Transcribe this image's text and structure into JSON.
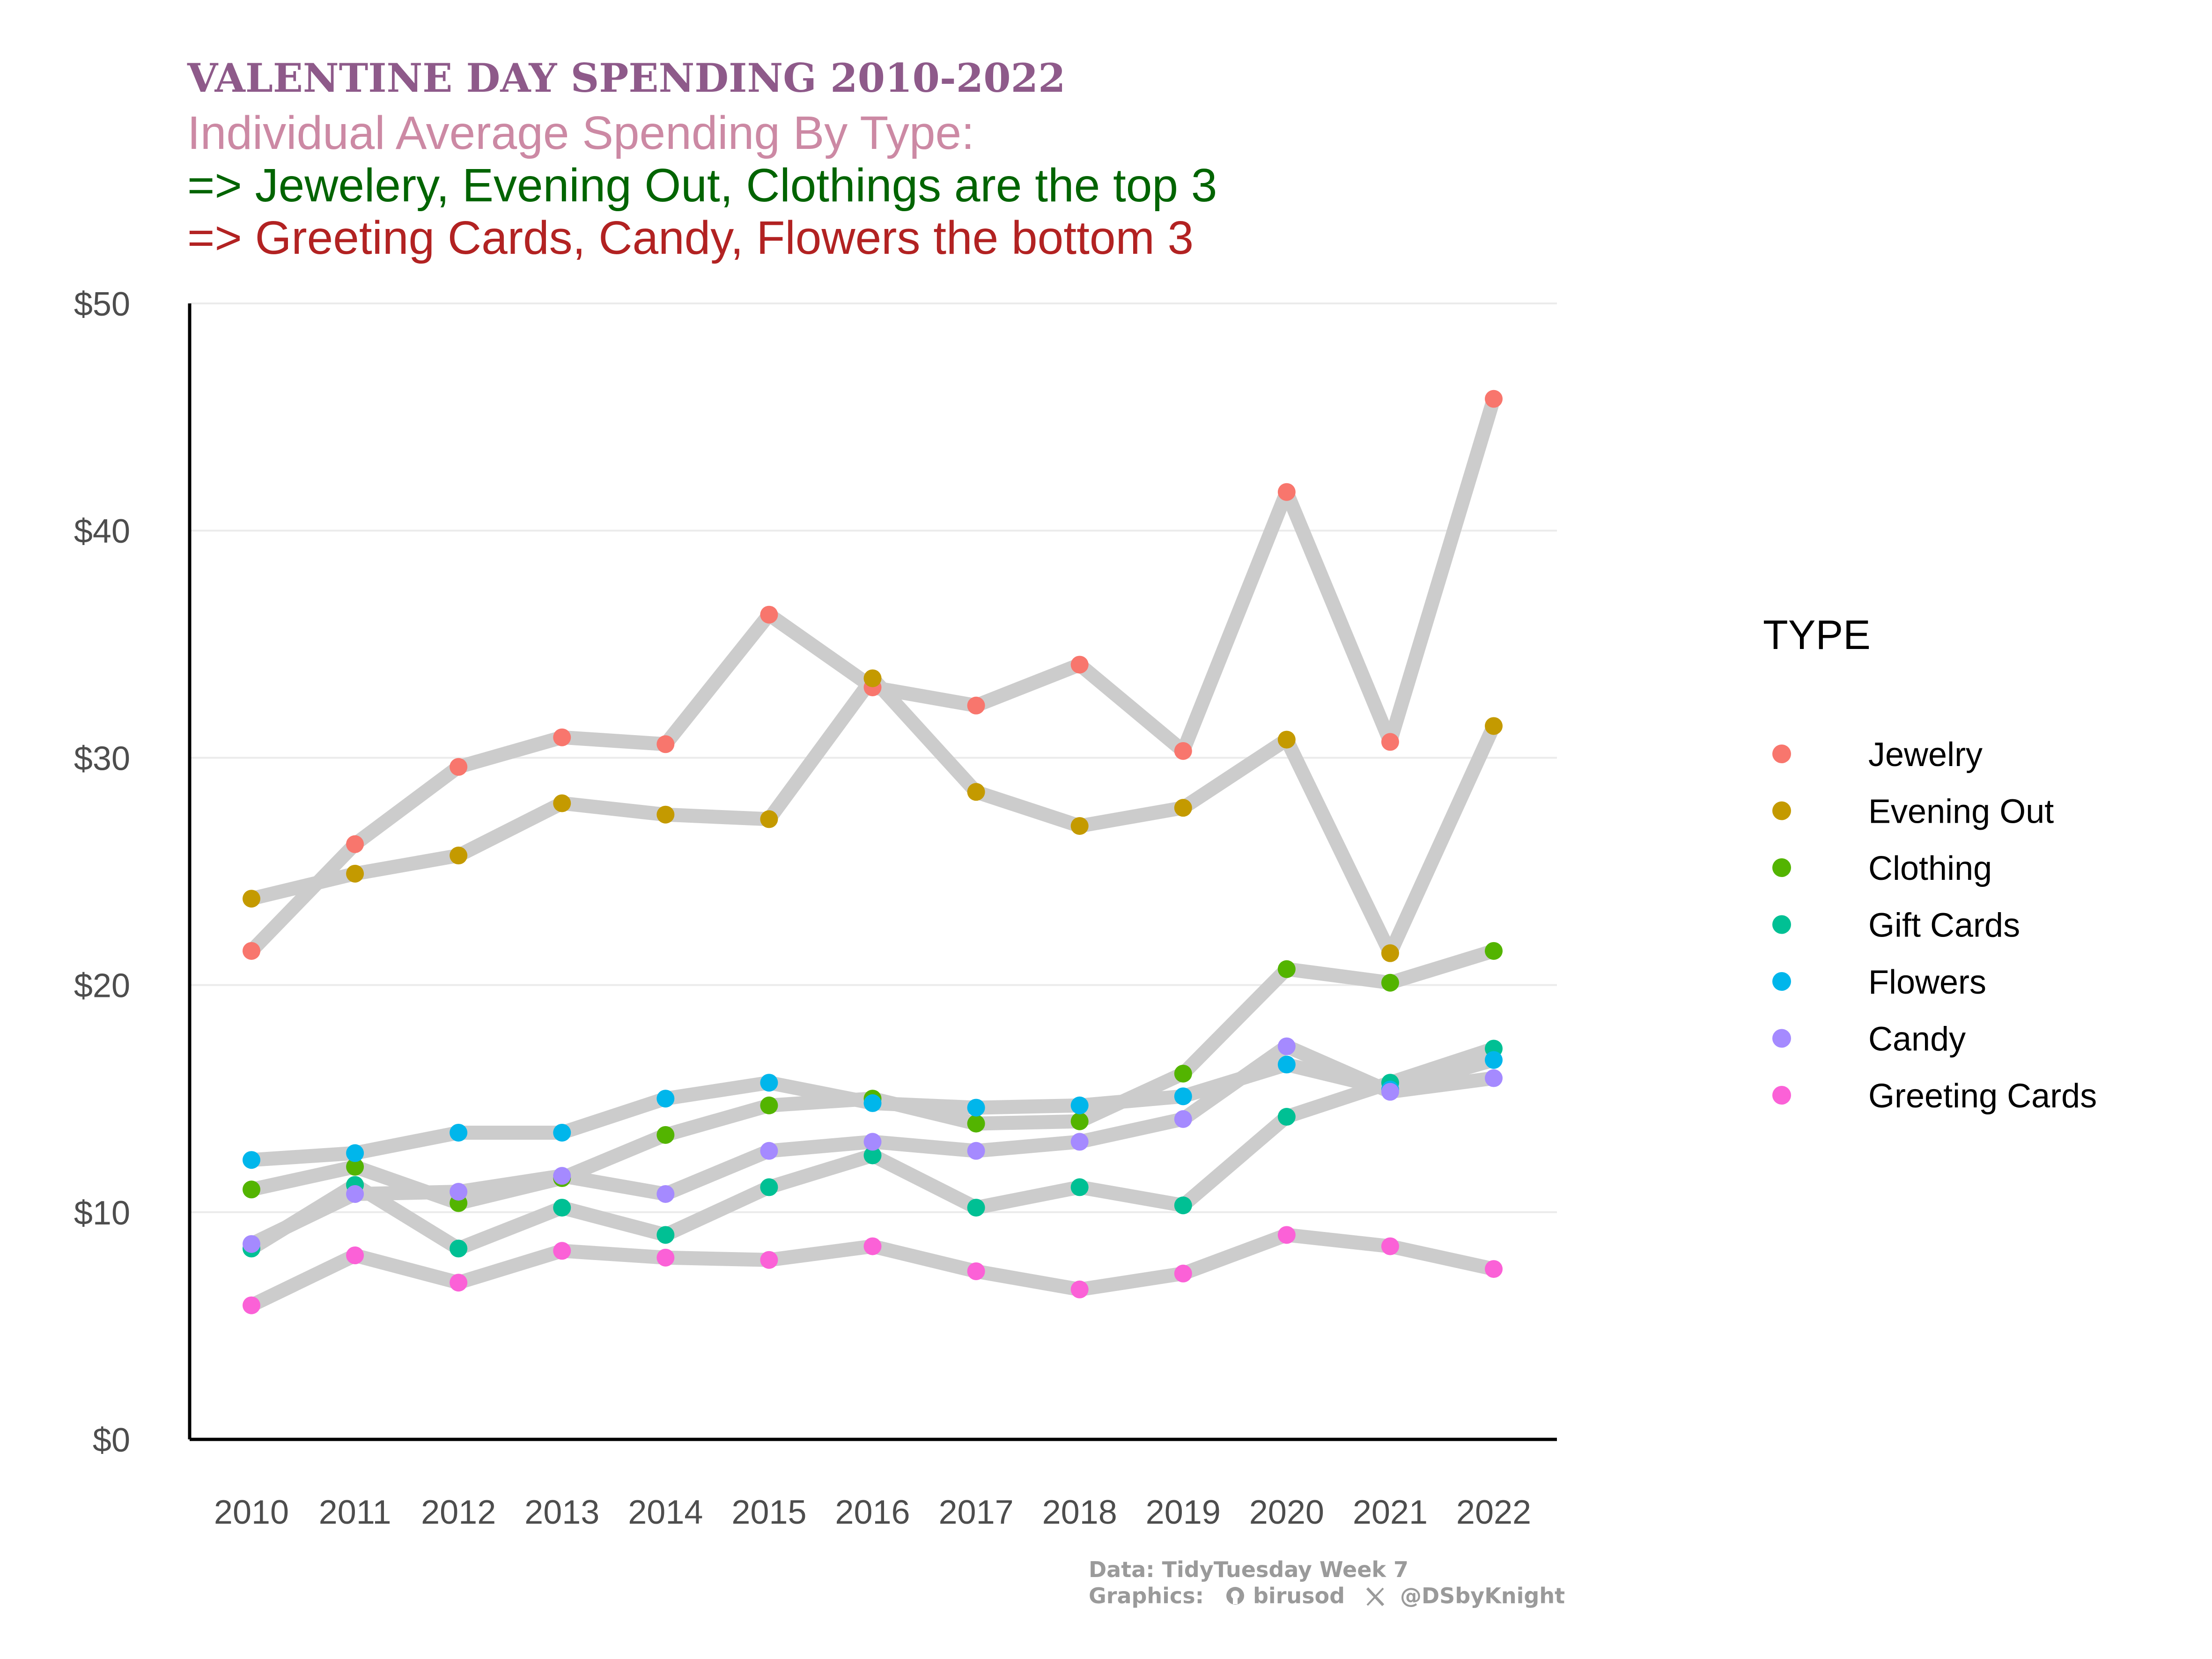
{
  "colors": {
    "title": "#8e5a8a",
    "subtitle": "#cc89a4",
    "top_note": "#006400",
    "bottom_note": "#b22222",
    "line": "#cccccc",
    "gridline": "#ebebeb",
    "axis": "#000000",
    "caption": "#9a9a9a"
  },
  "header": {
    "title": "VALENTINE DAY SPENDING 2010-2022",
    "subtitle": "Individual Average Spending By Type:",
    "note_top": "=> Jewelery, Evening Out, Clothings are the top 3",
    "note_bottom": "=> Greeting Cards, Candy, Flowers the bottom 3"
  },
  "caption": {
    "line1": "Data: TidyTuesday Week 7",
    "graphics_label": "Graphics:",
    "github_icon": "github-icon",
    "github_handle": "birusod",
    "x_icon": "x-icon",
    "x_handle": "@DSbyKnight"
  },
  "chart_data": {
    "type": "line",
    "title": "VALENTINE DAY SPENDING 2010-2022",
    "x": [
      2010,
      2011,
      2012,
      2013,
      2014,
      2015,
      2016,
      2017,
      2018,
      2019,
      2020,
      2021,
      2022
    ],
    "x_tick_labels": [
      "2010",
      "2011",
      "2012",
      "2013",
      "2014",
      "2015",
      "2016",
      "2017",
      "2018",
      "2019",
      "2020",
      "2021",
      "2022"
    ],
    "ylim": [
      0,
      50
    ],
    "y_ticks": [
      0,
      10,
      20,
      30,
      40,
      50
    ],
    "y_tick_labels": [
      "$0",
      "$10",
      "$20",
      "$30",
      "$40",
      "$50"
    ],
    "grid": "horizontal",
    "legend": {
      "title": "TYPE",
      "position": "right"
    },
    "series": [
      {
        "name": "Jewelry",
        "color": "#F8766D",
        "values": [
          21.5,
          26.2,
          29.6,
          30.9,
          30.6,
          36.3,
          33.1,
          32.3,
          34.1,
          30.3,
          41.7,
          30.7,
          45.8
        ]
      },
      {
        "name": "Evening Out",
        "color": "#C49A00",
        "values": [
          23.8,
          24.9,
          25.7,
          28.0,
          27.5,
          27.3,
          33.5,
          28.5,
          27.0,
          27.8,
          30.8,
          21.4,
          31.4
        ]
      },
      {
        "name": "Clothing",
        "color": "#53B400",
        "values": [
          11.0,
          12.0,
          10.4,
          11.5,
          13.4,
          14.7,
          15.0,
          13.9,
          14.0,
          16.1,
          20.7,
          20.1,
          21.5
        ]
      },
      {
        "name": "Gift Cards",
        "color": "#00C094",
        "values": [
          8.4,
          11.2,
          8.4,
          10.2,
          9.0,
          11.1,
          12.5,
          10.2,
          11.1,
          10.3,
          14.2,
          15.7,
          17.2
        ]
      },
      {
        "name": "Flowers",
        "color": "#00B6EB",
        "values": [
          12.3,
          12.6,
          13.5,
          13.5,
          15.0,
          15.7,
          14.8,
          14.6,
          14.7,
          15.1,
          16.5,
          15.4,
          16.7
        ]
      },
      {
        "name": "Candy",
        "color": "#A58AFF",
        "values": [
          8.6,
          10.8,
          10.9,
          11.6,
          10.8,
          12.7,
          13.1,
          12.7,
          13.1,
          14.1,
          17.3,
          15.3,
          15.9
        ]
      },
      {
        "name": "Greeting Cards",
        "color": "#FB61D7",
        "values": [
          5.9,
          8.1,
          6.9,
          8.3,
          8.0,
          7.9,
          8.5,
          7.4,
          6.6,
          7.3,
          9.0,
          8.5,
          7.5
        ]
      }
    ]
  }
}
